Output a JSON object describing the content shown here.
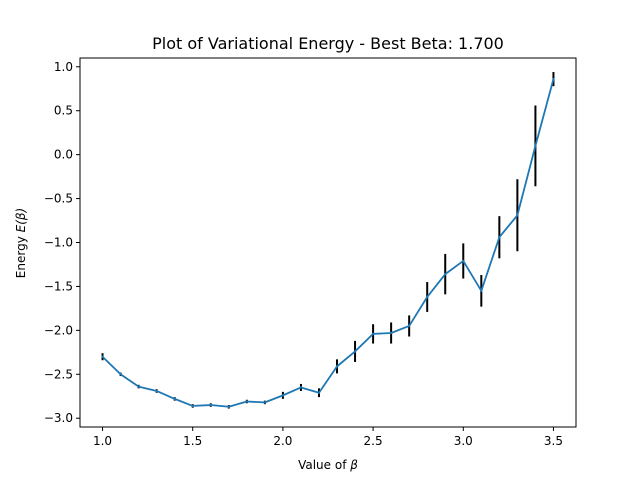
{
  "chart_data": {
    "type": "line",
    "title": "Plot of Variational Energy - Best Beta: 1.700",
    "xlabel_prefix": "Value of ",
    "xlabel_symbol": "β",
    "ylabel_prefix": "Energy ",
    "ylabel_symbol": "E(β)",
    "xlim": [
      0.875,
      3.625
    ],
    "ylim": [
      -3.1,
      1.1
    ],
    "x_ticks": [
      1.0,
      1.5,
      2.0,
      2.5,
      3.0,
      3.5
    ],
    "x_tick_labels": [
      "1.0",
      "1.5",
      "2.0",
      "2.5",
      "3.0",
      "3.5"
    ],
    "y_ticks": [
      1.0,
      0.5,
      0.0,
      -0.5,
      -1.0,
      -1.5,
      -2.0,
      -2.5,
      -3.0
    ],
    "y_tick_labels": [
      "1.0",
      "0.5",
      "0.0",
      "−0.5",
      "−1.0",
      "−1.5",
      "−2.0",
      "−2.5",
      "−3.0"
    ],
    "grid": false,
    "line_color": "#1f77b4",
    "errorbar_color": "#000000",
    "series": [
      {
        "x": [
          1.0,
          1.1,
          1.2,
          1.3,
          1.4,
          1.5,
          1.6,
          1.7,
          1.8,
          1.9,
          2.0,
          2.1,
          2.2,
          2.3,
          2.4,
          2.5,
          2.6,
          2.7,
          2.8,
          2.9,
          3.0,
          3.1,
          3.2,
          3.3,
          3.4,
          3.5
        ],
        "y": [
          -2.3,
          -2.5,
          -2.64,
          -2.69,
          -2.78,
          -2.86,
          -2.85,
          -2.87,
          -2.81,
          -2.82,
          -2.74,
          -2.65,
          -2.71,
          -2.41,
          -2.24,
          -2.04,
          -2.03,
          -1.95,
          -1.62,
          -1.36,
          -1.21,
          -1.55,
          -0.94,
          -0.69,
          0.1,
          0.86
        ],
        "yerr": [
          0.04,
          0.02,
          0.02,
          0.02,
          0.02,
          0.02,
          0.02,
          0.02,
          0.02,
          0.02,
          0.04,
          0.04,
          0.05,
          0.08,
          0.12,
          0.11,
          0.12,
          0.12,
          0.17,
          0.23,
          0.2,
          0.18,
          0.24,
          0.41,
          0.46,
          0.08
        ]
      }
    ]
  }
}
